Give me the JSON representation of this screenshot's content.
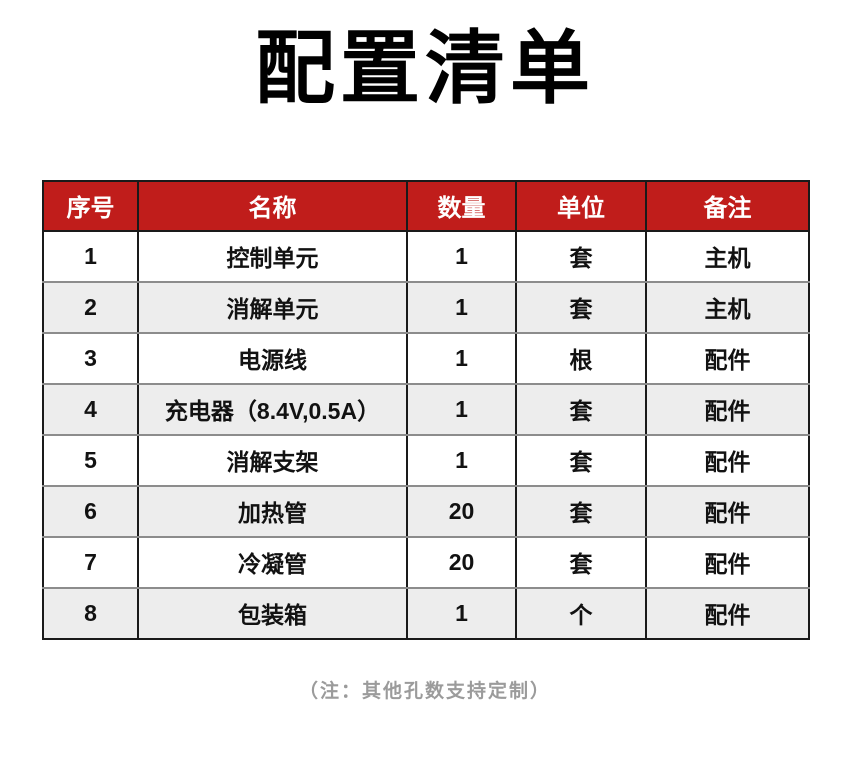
{
  "page": {
    "title": "配置清单",
    "note": "（注：其他孔数支持定制）"
  },
  "table": {
    "headers": [
      "序号",
      "名称",
      "数量",
      "单位",
      "备注"
    ],
    "rows": [
      [
        "1",
        "控制单元",
        "1",
        "套",
        "主机"
      ],
      [
        "2",
        "消解单元",
        "1",
        "套",
        "主机"
      ],
      [
        "3",
        "电源线",
        "1",
        "根",
        "配件"
      ],
      [
        "4",
        "充电器（8.4V,0.5A）",
        "1",
        "套",
        "配件"
      ],
      [
        "5",
        "消解支架",
        "1",
        "套",
        "配件"
      ],
      [
        "6",
        "加热管",
        "20",
        "套",
        "配件"
      ],
      [
        "7",
        "冷凝管",
        "20",
        "套",
        "配件"
      ],
      [
        "8",
        "包装箱",
        "1",
        "个",
        "配件"
      ]
    ]
  },
  "colors": {
    "header_bg": "#c01d1b",
    "header_text": "#ffffff",
    "row_alt_bg": "#ededed",
    "body_text": "#121212",
    "note_text": "#9b9b9b",
    "border_dark": "#1a1a1a",
    "border_row_separator": "#8c8c8c"
  }
}
